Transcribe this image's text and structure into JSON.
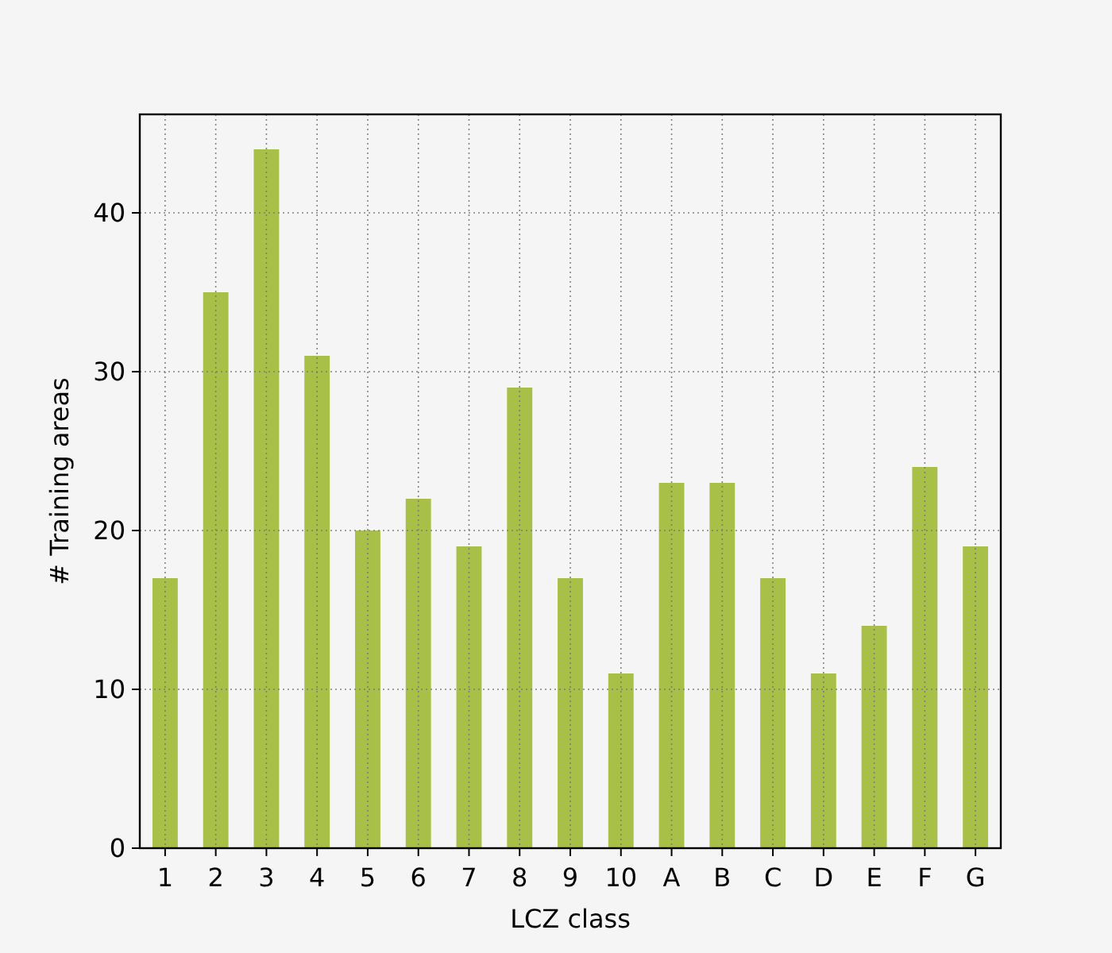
{
  "chart_data": {
    "type": "bar",
    "xlabel": "LCZ class",
    "ylabel": "# Training areas",
    "categories": [
      "1",
      "2",
      "3",
      "4",
      "5",
      "6",
      "7",
      "8",
      "9",
      "10",
      "A",
      "B",
      "C",
      "D",
      "E",
      "F",
      "G"
    ],
    "values": [
      17,
      35,
      44,
      31,
      20,
      22,
      19,
      29,
      17,
      11,
      23,
      23,
      17,
      11,
      14,
      24,
      19
    ],
    "color": "#a8bf48",
    "ylim": [
      0,
      46.2
    ],
    "yticks": [
      0,
      10,
      20,
      30,
      40
    ],
    "grid": true
  }
}
